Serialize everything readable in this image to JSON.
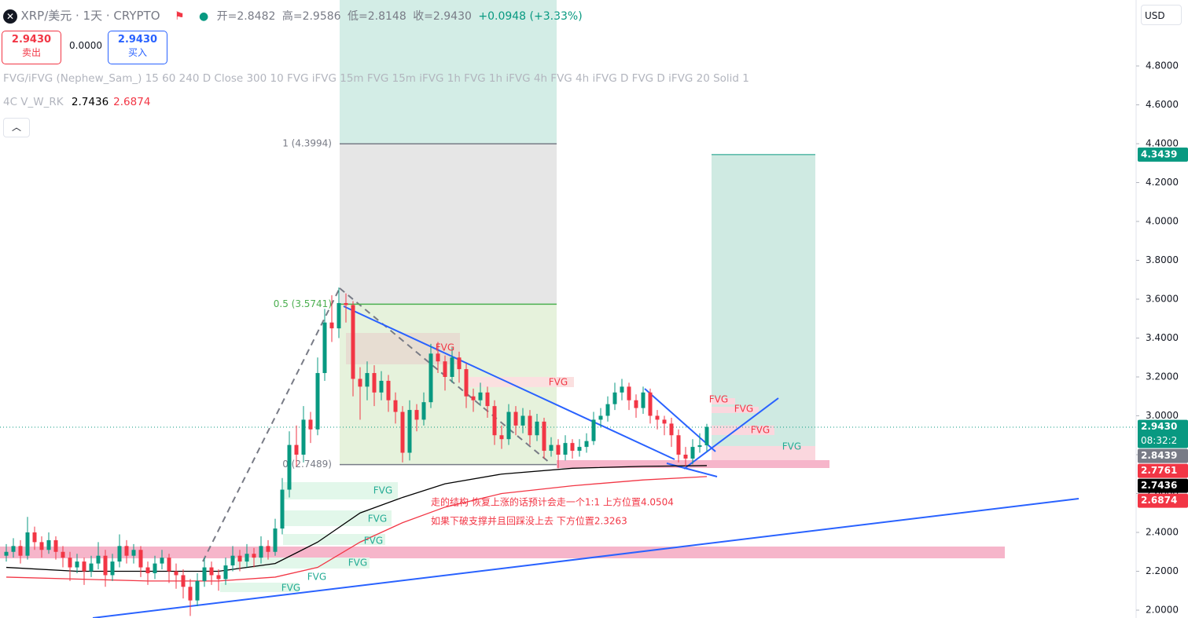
{
  "header": {
    "symbol": "XRP/美元 · 1天 · CRYPTO",
    "open": "开=2.8482",
    "high": "高=2.9586",
    "low": "低=2.8148",
    "close": "收=2.9430",
    "change": "+0.0948 (+3.33%)",
    "sell_price": "2.9430",
    "sell": "卖出",
    "spread": "0.0000",
    "buy_price": "2.9430",
    "buy": "买入",
    "indicator": "FVG/iFVG (Nephew_Sam_) 15 60 240 D Close 300 10 FVG iFVG 15m FVG 15m iFVG 1h FVG 1h iFVG 4h FVG 4h iFVG D FVG D iFVG 20 Solid 1",
    "ma_legend": "4C V_W_RK",
    "currency": "USD"
  },
  "chart_data": {
    "type": "candlestick",
    "up_color": "#089981",
    "down_color": "#f23645",
    "ylim": [
      1.9596,
      5.1394
    ],
    "yticks": [
      {
        "value": 2.0,
        "label": "2.0000"
      },
      {
        "value": 2.2,
        "label": "2.2000"
      },
      {
        "value": 2.4,
        "label": "2.4000"
      },
      {
        "value": 2.6,
        "label": "2.6000"
      },
      {
        "value": 2.8,
        "label": "2.8000"
      },
      {
        "value": 3.0,
        "label": "3.0000"
      },
      {
        "value": 3.2,
        "label": "3.2000"
      },
      {
        "value": 3.4,
        "label": "3.4000"
      },
      {
        "value": 3.6,
        "label": "3.6000"
      },
      {
        "value": 3.8,
        "label": "3.8000"
      },
      {
        "value": 4.0,
        "label": "4.0000"
      },
      {
        "value": 4.2,
        "label": "4.2000"
      },
      {
        "value": 4.4,
        "label": "4.4000"
      },
      {
        "value": 4.6,
        "label": "4.6000"
      },
      {
        "value": 4.8,
        "label": "4.8000"
      }
    ],
    "ohlc": [
      [
        2.28,
        2.34,
        2.25,
        2.3
      ],
      [
        2.3,
        2.37,
        2.27,
        2.33
      ],
      [
        2.33,
        2.36,
        2.24,
        2.28
      ],
      [
        2.28,
        2.48,
        2.26,
        2.4
      ],
      [
        2.4,
        2.43,
        2.31,
        2.35
      ],
      [
        2.35,
        2.38,
        2.27,
        2.31
      ],
      [
        2.31,
        2.4,
        2.29,
        2.36
      ],
      [
        2.36,
        2.38,
        2.26,
        2.3
      ],
      [
        2.3,
        2.33,
        2.22,
        2.27
      ],
      [
        2.27,
        2.3,
        2.15,
        2.22
      ],
      [
        2.22,
        2.29,
        2.19,
        2.25
      ],
      [
        2.25,
        2.27,
        2.13,
        2.2
      ],
      [
        2.2,
        2.28,
        2.17,
        2.24
      ],
      [
        2.24,
        2.35,
        2.21,
        2.28
      ],
      [
        2.28,
        2.31,
        2.12,
        2.18
      ],
      [
        2.18,
        2.29,
        2.15,
        2.25
      ],
      [
        2.25,
        2.39,
        2.22,
        2.33
      ],
      [
        2.33,
        2.36,
        2.24,
        2.28
      ],
      [
        2.28,
        2.34,
        2.24,
        2.31
      ],
      [
        2.31,
        2.33,
        2.17,
        2.22
      ],
      [
        2.22,
        2.25,
        2.13,
        2.19
      ],
      [
        2.19,
        2.28,
        2.16,
        2.24
      ],
      [
        2.24,
        2.31,
        2.21,
        2.27
      ],
      [
        2.27,
        2.29,
        2.14,
        2.2
      ],
      [
        2.2,
        2.24,
        2.11,
        2.18
      ],
      [
        2.18,
        2.21,
        2.06,
        2.12
      ],
      [
        2.12,
        2.16,
        1.97,
        2.05
      ],
      [
        2.05,
        2.19,
        2.02,
        2.15
      ],
      [
        2.15,
        2.27,
        2.12,
        2.22
      ],
      [
        2.22,
        2.25,
        2.13,
        2.18
      ],
      [
        2.18,
        2.21,
        2.1,
        2.16
      ],
      [
        2.16,
        2.27,
        2.13,
        2.23
      ],
      [
        2.23,
        2.33,
        2.2,
        2.28
      ],
      [
        2.28,
        2.31,
        2.2,
        2.25
      ],
      [
        2.25,
        2.34,
        2.22,
        2.29
      ],
      [
        2.29,
        2.32,
        2.22,
        2.27
      ],
      [
        2.27,
        2.38,
        2.24,
        2.33
      ],
      [
        2.33,
        2.36,
        2.26,
        2.3
      ],
      [
        2.3,
        2.47,
        2.28,
        2.42
      ],
      [
        2.42,
        2.68,
        2.39,
        2.62
      ],
      [
        2.62,
        2.92,
        2.58,
        2.85
      ],
      [
        2.85,
        2.95,
        2.74,
        2.8
      ],
      [
        2.8,
        3.05,
        2.76,
        2.98
      ],
      [
        2.98,
        3.02,
        2.86,
        2.93
      ],
      [
        2.93,
        3.3,
        2.9,
        3.22
      ],
      [
        3.22,
        3.55,
        3.18,
        3.48
      ],
      [
        3.48,
        3.62,
        3.38,
        3.45
      ],
      [
        3.45,
        3.66,
        3.4,
        3.58
      ],
      [
        3.58,
        3.63,
        3.48,
        3.57
      ],
      [
        3.57,
        3.59,
        3.1,
        3.19
      ],
      [
        3.19,
        3.25,
        2.98,
        3.15
      ],
      [
        3.15,
        3.28,
        3.08,
        3.22
      ],
      [
        3.22,
        3.26,
        3.05,
        3.12
      ],
      [
        3.12,
        3.23,
        3.08,
        3.18
      ],
      [
        3.18,
        3.21,
        3.02,
        3.08
      ],
      [
        3.08,
        3.12,
        2.96,
        3.02
      ],
      [
        3.02,
        3.05,
        2.76,
        2.81
      ],
      [
        2.81,
        3.08,
        2.77,
        3.03
      ],
      [
        3.03,
        3.06,
        2.92,
        2.98
      ],
      [
        2.98,
        3.12,
        2.95,
        3.07
      ],
      [
        3.07,
        3.37,
        3.04,
        3.32
      ],
      [
        3.32,
        3.38,
        3.22,
        3.28
      ],
      [
        3.28,
        3.31,
        3.13,
        3.2
      ],
      [
        3.2,
        3.35,
        3.17,
        3.3
      ],
      [
        3.3,
        3.33,
        3.17,
        3.24
      ],
      [
        3.24,
        3.27,
        3.04,
        3.1
      ],
      [
        3.1,
        3.14,
        3.02,
        3.08
      ],
      [
        3.08,
        3.17,
        3.05,
        3.12
      ],
      [
        3.12,
        3.15,
        2.99,
        3.05
      ],
      [
        3.05,
        3.08,
        2.85,
        2.9
      ],
      [
        2.9,
        2.95,
        2.83,
        2.88
      ],
      [
        2.88,
        3.06,
        2.85,
        3.02
      ],
      [
        3.02,
        3.05,
        2.9,
        2.95
      ],
      [
        2.95,
        3.04,
        2.91,
        3.0
      ],
      [
        3.0,
        3.03,
        2.85,
        2.9
      ],
      [
        2.9,
        3.01,
        2.87,
        2.97
      ],
      [
        2.97,
        2.99,
        2.78,
        2.82
      ],
      [
        2.82,
        2.89,
        2.79,
        2.85
      ],
      [
        2.85,
        2.88,
        2.73,
        2.8
      ],
      [
        2.8,
        2.9,
        2.77,
        2.86
      ],
      [
        2.86,
        2.88,
        2.78,
        2.82
      ],
      [
        2.82,
        2.88,
        2.79,
        2.84
      ],
      [
        2.84,
        2.91,
        2.81,
        2.87
      ],
      [
        2.87,
        3.02,
        2.85,
        2.98
      ],
      [
        2.98,
        3.04,
        2.94,
        3.0
      ],
      [
        3.0,
        3.1,
        2.97,
        3.06
      ],
      [
        3.06,
        3.17,
        3.03,
        3.12
      ],
      [
        3.12,
        3.19,
        3.08,
        3.15
      ],
      [
        3.15,
        3.17,
        3.03,
        3.08
      ],
      [
        3.08,
        3.11,
        2.99,
        3.04
      ],
      [
        3.04,
        3.15,
        3.01,
        3.12
      ],
      [
        3.12,
        3.14,
        2.96,
        3.0
      ],
      [
        3.0,
        3.03,
        2.93,
        2.98
      ],
      [
        2.98,
        3.0,
        2.9,
        2.96
      ],
      [
        2.96,
        2.99,
        2.84,
        2.9
      ],
      [
        2.9,
        2.93,
        2.76,
        2.8
      ],
      [
        2.8,
        2.84,
        2.74,
        2.78
      ],
      [
        2.78,
        2.88,
        2.75,
        2.84
      ],
      [
        2.84,
        2.91,
        2.81,
        2.8482
      ],
      [
        2.8482,
        2.9586,
        2.8148,
        2.943
      ]
    ],
    "ma_series": [
      {
        "color": "#000000",
        "x": [
          0,
          10,
          20,
          30,
          38,
          44,
          50,
          56,
          62,
          70,
          80,
          90,
          99
        ],
        "values": [
          2.22,
          2.2,
          2.2,
          2.2,
          2.24,
          2.35,
          2.5,
          2.58,
          2.65,
          2.7,
          2.73,
          2.74,
          2.7436
        ],
        "value_label": "2.7436"
      },
      {
        "color": "#f23645",
        "x": [
          0,
          20,
          30,
          38,
          44,
          50,
          56,
          62,
          70,
          80,
          90,
          99
        ],
        "values": [
          2.17,
          2.15,
          2.15,
          2.17,
          2.22,
          2.35,
          2.45,
          2.53,
          2.6,
          2.64,
          2.67,
          2.6874
        ],
        "value_label": "2.6874"
      }
    ],
    "fib_levels": [
      {
        "label": "1 (4.3994)",
        "value": 4.3994,
        "color": "#787b86"
      },
      {
        "label": "0.5 (3.5741)",
        "value": 3.5741,
        "color": "#4caf50"
      },
      {
        "label": "0 (2.7489)",
        "value": 2.7489,
        "color": "#787b86"
      }
    ],
    "target_line": 4.3439,
    "price_labels": [
      {
        "value": 4.3439,
        "label": "4.3439",
        "color": "#089981"
      },
      {
        "value": 2.943,
        "label": "2.9430",
        "color": "#089981"
      },
      {
        "value": 2.8439,
        "label": "2.8439",
        "color": "#787b86"
      },
      {
        "value": 2.7761,
        "label": "2.7761",
        "color": "#f23645"
      },
      {
        "value": 2.7436,
        "label": "2.7436",
        "color": "#000000"
      },
      {
        "value": 2.6874,
        "label": "2.6874",
        "color": "#f23645"
      }
    ],
    "countdown": "08:32:2",
    "fvg_labels": [
      "FVG",
      "FVG",
      "FVG",
      "FVG",
      "FVG",
      "FVG",
      "FVG",
      "FVG",
      "FVG",
      "FVG",
      "FVG",
      "FVG"
    ],
    "annotations": [
      "走的结构 恢复上涨的话预计会走一个1:1 上方位置4.0504",
      "如果下破支撑并且回踩没上去 下方位置2.3263"
    ],
    "annotation_color": "#f23645"
  }
}
